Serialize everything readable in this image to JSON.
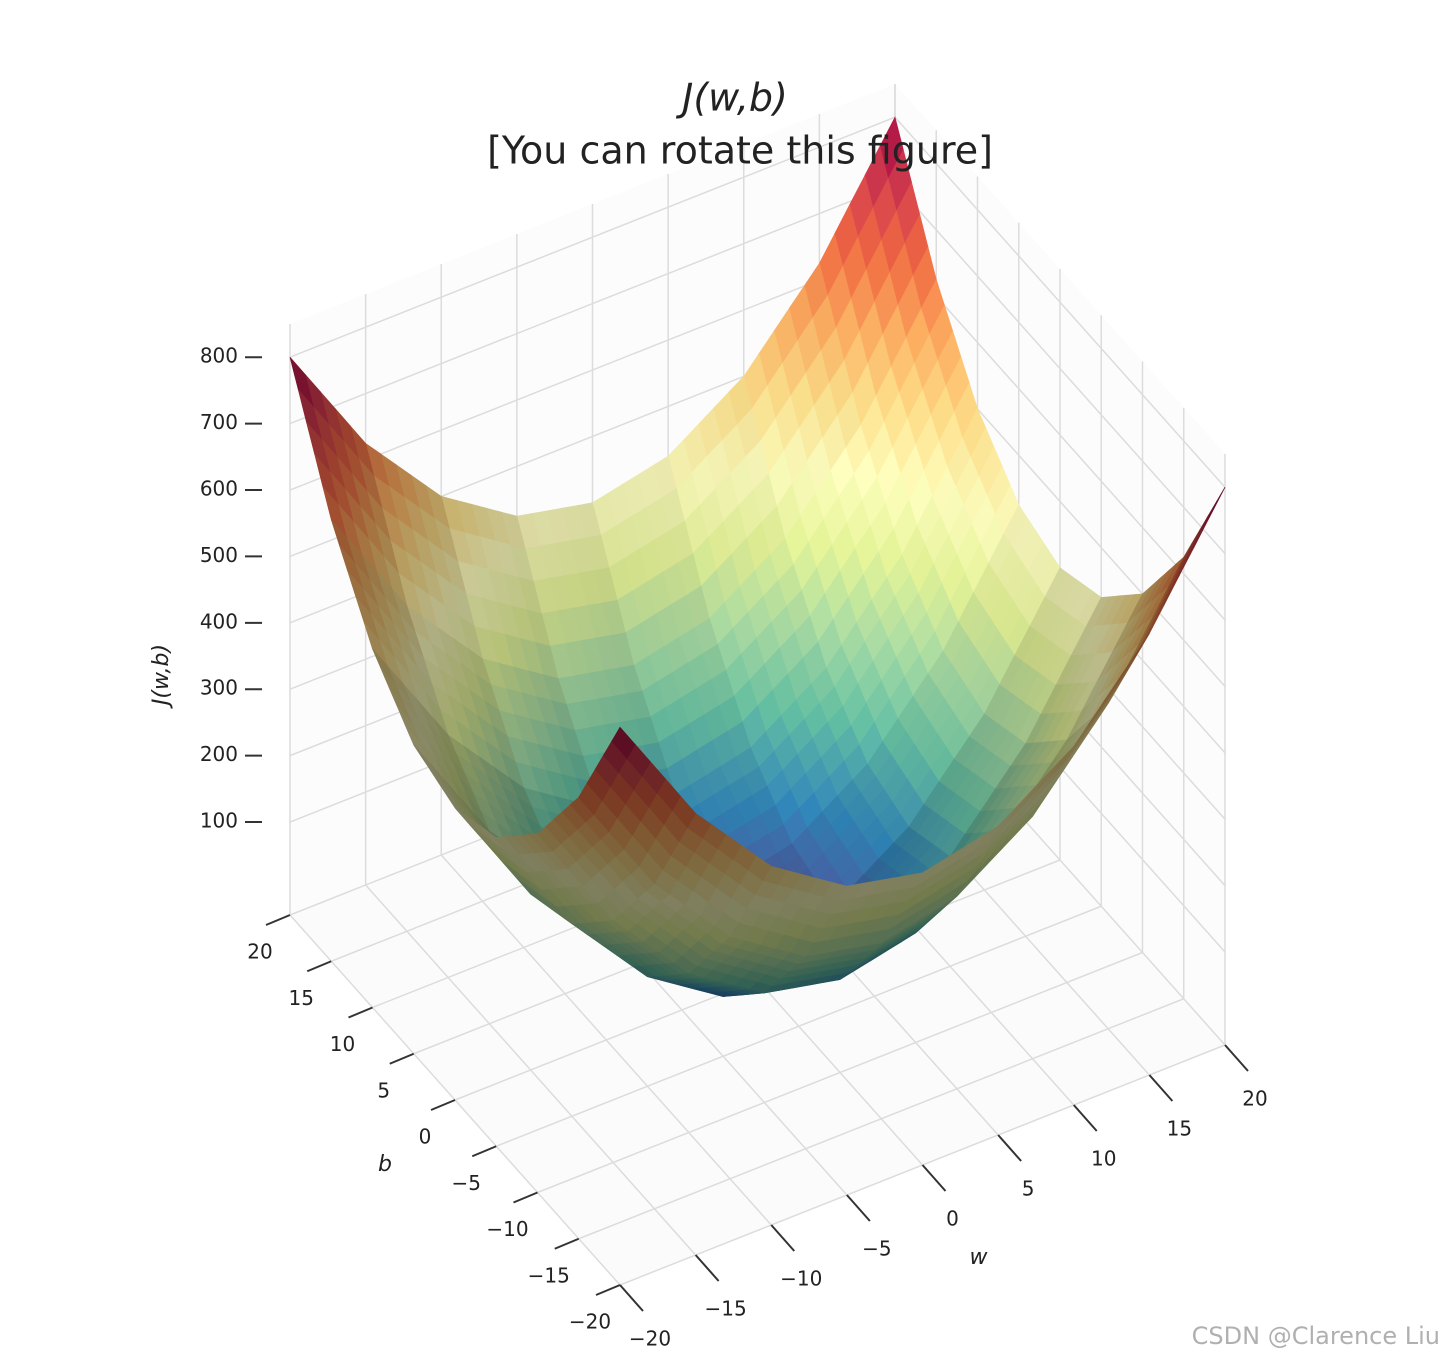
{
  "chart_data": {
    "type": "surface",
    "title": "J(w,b)",
    "subtitle": "[You can rotate this figure]",
    "x_label": "w",
    "y_label": "b",
    "z_label": "J(w,b)",
    "x": [
      -20,
      -15,
      -10,
      -5,
      0,
      5,
      10,
      15,
      20
    ],
    "y": [
      -20,
      -15,
      -10,
      -5,
      0,
      5,
      10,
      15,
      20
    ],
    "z": [
      [
        800,
        625,
        500,
        425,
        400,
        425,
        500,
        625,
        800
      ],
      [
        625,
        450,
        325,
        250,
        225,
        250,
        325,
        450,
        625
      ],
      [
        500,
        325,
        200,
        125,
        100,
        125,
        200,
        325,
        500
      ],
      [
        425,
        250,
        125,
        50,
        25,
        50,
        125,
        250,
        425
      ],
      [
        400,
        225,
        100,
        25,
        0,
        25,
        100,
        225,
        400
      ],
      [
        425,
        250,
        125,
        50,
        25,
        50,
        125,
        250,
        425
      ],
      [
        500,
        325,
        200,
        125,
        100,
        125,
        200,
        325,
        500
      ],
      [
        625,
        450,
        325,
        250,
        225,
        250,
        325,
        450,
        625
      ],
      [
        800,
        625,
        500,
        425,
        400,
        425,
        500,
        625,
        800
      ]
    ],
    "xlim": [
      -20,
      20
    ],
    "ylim": [
      -20,
      20
    ],
    "zlim": [
      -40,
      850
    ],
    "xticks": [
      {
        "value": -20,
        "label": "−20"
      },
      {
        "value": -15,
        "label": "−15"
      },
      {
        "value": -10,
        "label": "−10"
      },
      {
        "value": -5,
        "label": "−5"
      },
      0,
      5,
      10,
      15,
      20
    ],
    "yticks": [
      {
        "value": -20,
        "label": "−20"
      },
      {
        "value": -15,
        "label": "−15"
      },
      {
        "value": -10,
        "label": "−10"
      },
      {
        "value": -5,
        "label": "−5"
      },
      0,
      5,
      10,
      15,
      20
    ],
    "zticks": [
      100,
      200,
      300,
      400,
      500,
      600,
      700,
      800
    ],
    "colormap": [
      "#5e4fa2",
      "#3288bd",
      "#66c2a5",
      "#abdda4",
      "#e6f598",
      "#ffffbf",
      "#fee08b",
      "#fdae61",
      "#f46d43",
      "#d53e4f",
      "#9e0142"
    ],
    "grid": true
  },
  "watermark": "CSDN @Clarence Liu"
}
